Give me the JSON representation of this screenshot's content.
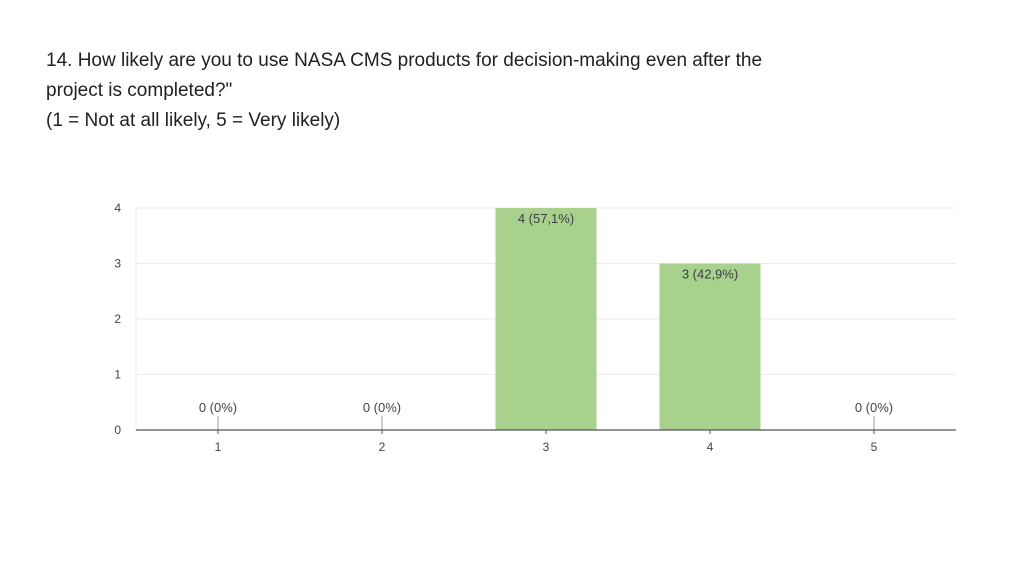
{
  "question": {
    "line1": "14. How likely are you to use NASA CMS products for decision-making even after the",
    "line2": "project is completed?\"",
    "line3": "(1 = Not at all likely, 5 = Very likely)"
  },
  "chart_data": {
    "type": "bar",
    "title": "14. How likely are you to use NASA CMS products for decision-making even after the project is completed?\"",
    "subtitle": "(1 = Not at all likely, 5 = Very likely)",
    "xlabel": "",
    "ylabel": "",
    "categories": [
      "1",
      "2",
      "3",
      "4",
      "5"
    ],
    "values": [
      0,
      0,
      4,
      3,
      0
    ],
    "data_labels": [
      "0 (0%)",
      "0 (0%)",
      "4 (57,1%)",
      "3 (42,9%)",
      "0 (0%)"
    ],
    "y_ticks": [
      "0",
      "1",
      "2",
      "3",
      "4"
    ],
    "ylim": [
      0,
      4
    ],
    "grid": true,
    "legend": "none",
    "bar_color": "#a8d18d",
    "gridline_color": "#ebebeb",
    "axis_color": "#555555"
  }
}
